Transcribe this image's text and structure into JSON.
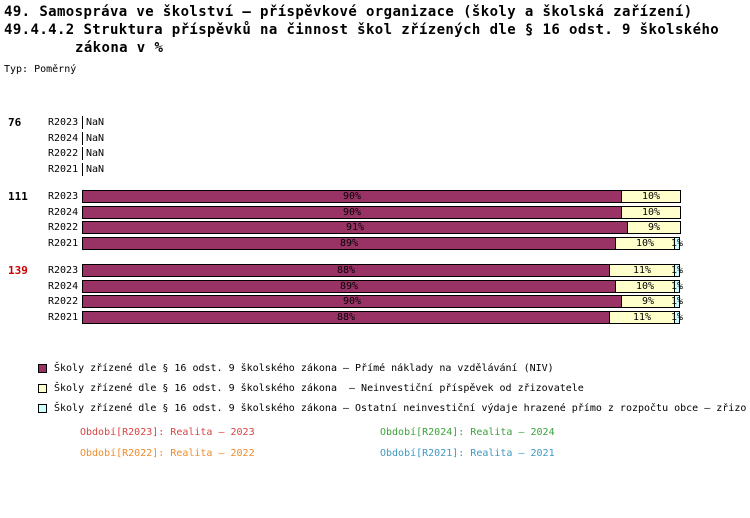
{
  "title": {
    "line1": "49. Samospráva ve školství – příspěvkové organizace (školy a školská zařízení)",
    "line2": "49.4.4.2 Struktura příspěvků na činnost škol zřízených dle § 16 odst. 9 školského",
    "line3": "zákona v %",
    "type_label": "Typ: Poměrný"
  },
  "chart_data": {
    "type": "bar",
    "orientation": "horizontal-stacked",
    "unit": "%",
    "x_range": [
      0,
      100
    ],
    "series": [
      {
        "name": "Přímé náklady na vzdělávání (NIV)",
        "color": "#993366"
      },
      {
        "name": "Neinvestiční příspěvek od zřizovatele",
        "color": "#FFFFCC"
      },
      {
        "name": "Ostatní neinvestiční výdaje hrazené přímo z rozpočtu obce",
        "color": "#CCFFFF"
      }
    ],
    "groups": [
      {
        "label": "76",
        "label_color": "#000000",
        "rows": [
          {
            "period": "R2023",
            "nan": true,
            "value_label": "NaN"
          },
          {
            "period": "R2024",
            "nan": true,
            "value_label": "NaN"
          },
          {
            "period": "R2022",
            "nan": true,
            "value_label": "NaN"
          },
          {
            "period": "R2021",
            "nan": true,
            "value_label": "NaN"
          }
        ]
      },
      {
        "label": "111",
        "label_color": "#000000",
        "rows": [
          {
            "period": "R2023",
            "segments": [
              {
                "value": 90,
                "label": "90%"
              },
              {
                "value": 10,
                "label": "10%"
              }
            ]
          },
          {
            "period": "R2024",
            "segments": [
              {
                "value": 90,
                "label": "90%"
              },
              {
                "value": 10,
                "label": "10%"
              }
            ]
          },
          {
            "period": "R2022",
            "segments": [
              {
                "value": 91,
                "label": "91%"
              },
              {
                "value": 9,
                "label": "9%"
              }
            ]
          },
          {
            "period": "R2021",
            "segments": [
              {
                "value": 89,
                "label": "89%"
              },
              {
                "value": 10,
                "label": "10%"
              },
              {
                "value": 1,
                "label": "1%"
              }
            ]
          }
        ]
      },
      {
        "label": "139",
        "label_color": "#cc0000",
        "rows": [
          {
            "period": "R2023",
            "segments": [
              {
                "value": 88,
                "label": "88%"
              },
              {
                "value": 11,
                "label": "11%"
              },
              {
                "value": 1,
                "label": "1%"
              }
            ]
          },
          {
            "period": "R2024",
            "segments": [
              {
                "value": 89,
                "label": "89%"
              },
              {
                "value": 10,
                "label": "10%"
              },
              {
                "value": 1,
                "label": "1%"
              }
            ]
          },
          {
            "period": "R2022",
            "segments": [
              {
                "value": 90,
                "label": "90%"
              },
              {
                "value": 9,
                "label": "9%"
              },
              {
                "value": 1,
                "label": "1%"
              }
            ]
          },
          {
            "period": "R2021",
            "segments": [
              {
                "value": 88,
                "label": "88%"
              },
              {
                "value": 11,
                "label": "11%"
              },
              {
                "value": 1,
                "label": "1%"
              }
            ]
          }
        ]
      }
    ]
  },
  "series_legend": [
    {
      "color": "#993366",
      "label": "Školy zřízené dle § 16 odst. 9 školského zákona – Přímé náklady na vzdělávání (NIV)"
    },
    {
      "color": "#FFFFCC",
      "label": "Školy zřízené dle § 16 odst. 9 školského zákona  – Neinvestiční příspěvek od zřizovatele"
    },
    {
      "color": "#CCFFFF",
      "label": "Školy zřízené dle § 16 odst. 9 školského zákona – Ostatní neinvestiční výdaje hrazené přímo z rozpočtu obce – zřizo"
    }
  ],
  "period_legend": [
    {
      "label": "Období[R2023]: Realita – 2023",
      "color": "#d94343"
    },
    {
      "label": "Období[R2024]: Realita – 2024",
      "color": "#3aa33a"
    },
    {
      "label": "Období[R2022]: Realita – 2022",
      "color": "#f08c28"
    },
    {
      "label": "Období[R2021]: Realita – 2021",
      "color": "#3d99c2"
    }
  ]
}
